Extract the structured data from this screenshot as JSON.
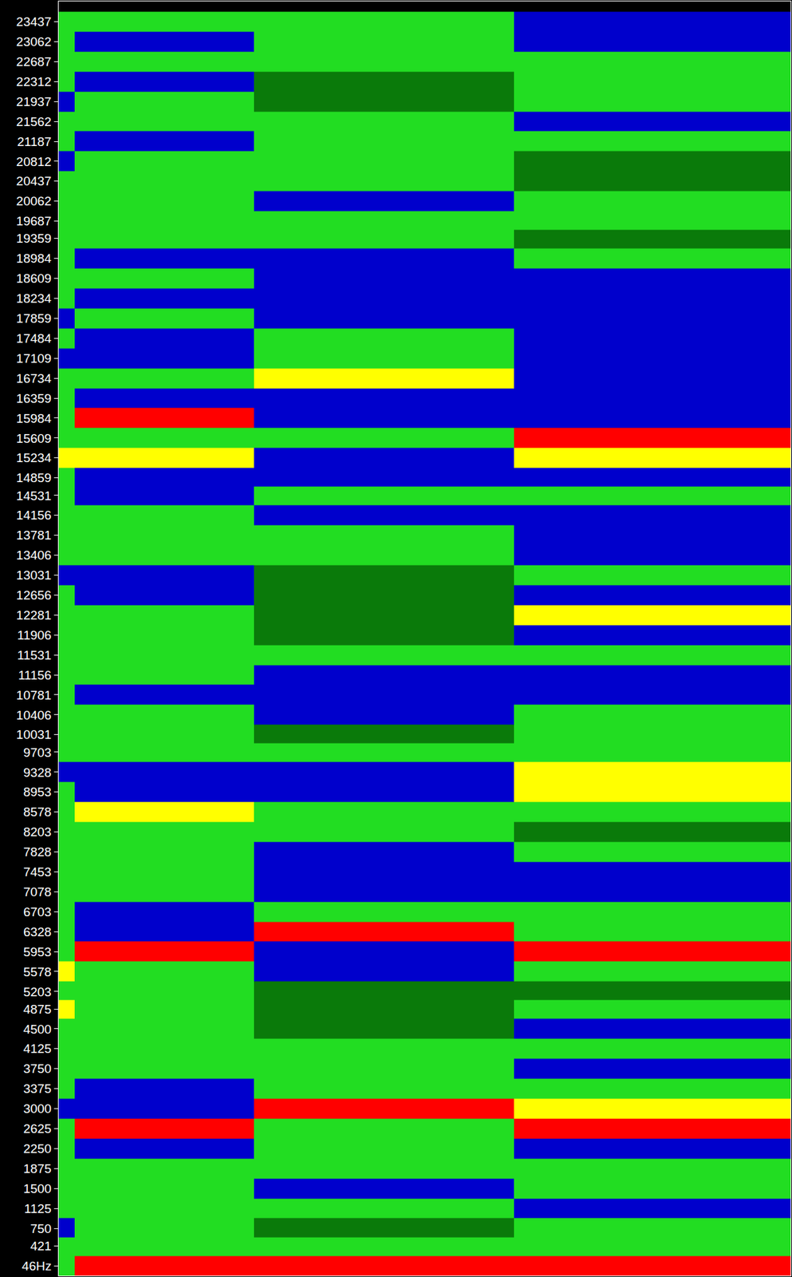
{
  "chart_data": {
    "type": "heatmap",
    "tick_labels": "y",
    "grid": false,
    "xlim": [
      0,
      45
    ],
    "ylim": [
      -140,
      23820
    ],
    "yticks": [
      {
        "value": 46,
        "label": "46Hz"
      },
      421,
      750,
      1125,
      1500,
      1875,
      2250,
      2625,
      3000,
      3375,
      3750,
      4125,
      4500,
      4875,
      5203,
      5578,
      5953,
      6328,
      6703,
      7078,
      7453,
      7828,
      8203,
      8578,
      8953,
      9328,
      9703,
      10031,
      10406,
      10781,
      11156,
      11531,
      11906,
      12281,
      12656,
      13031,
      13406,
      13781,
      14156,
      14531,
      14859,
      15234,
      15609,
      15984,
      16359,
      16734,
      17109,
      17484,
      17859,
      18234,
      18609,
      18984,
      19359,
      19687,
      20062,
      20437,
      20812,
      21187,
      21562,
      21937,
      22312,
      22687,
      23062,
      23437
    ],
    "x": [
      0,
      1,
      12,
      28,
      45
    ],
    "y": [
      46,
      421,
      750,
      1125,
      1500,
      1875,
      2250,
      2625,
      3000,
      3375,
      3750,
      4125,
      4500,
      4875,
      5203,
      5578,
      5953,
      6328,
      6703,
      7078,
      7453,
      7828,
      8203,
      8578,
      8953,
      9328,
      9703,
      10031,
      10406,
      10781,
      11156,
      11531,
      11906,
      12281,
      12656,
      13031,
      13406,
      13781,
      14156,
      14531,
      14859,
      15234,
      15609,
      15984,
      16359,
      16734,
      17109,
      17484,
      17859,
      18234,
      18609,
      18984,
      19359,
      19687,
      20062,
      20437,
      20812,
      21187,
      21562,
      21937,
      22312,
      22687,
      23062,
      23437
    ],
    "z": [
      [
        1,
        4,
        4,
        4
      ],
      [
        1,
        1,
        1,
        1
      ],
      [
        2,
        1,
        0,
        1
      ],
      [
        1,
        1,
        1,
        2
      ],
      [
        1,
        1,
        2,
        1
      ],
      [
        1,
        1,
        1,
        1
      ],
      [
        1,
        2,
        1,
        2
      ],
      [
        1,
        4,
        1,
        4
      ],
      [
        2,
        2,
        4,
        3
      ],
      [
        1,
        2,
        1,
        1
      ],
      [
        1,
        1,
        1,
        2
      ],
      [
        1,
        1,
        1,
        1
      ],
      [
        1,
        1,
        0,
        2
      ],
      [
        3,
        1,
        0,
        1
      ],
      [
        1,
        1,
        0,
        0
      ],
      [
        3,
        1,
        2,
        1
      ],
      [
        1,
        4,
        2,
        4
      ],
      [
        1,
        2,
        4,
        1
      ],
      [
        1,
        2,
        1,
        1
      ],
      [
        1,
        1,
        2,
        2
      ],
      [
        1,
        1,
        2,
        2
      ],
      [
        1,
        1,
        2,
        1
      ],
      [
        1,
        1,
        1,
        0
      ],
      [
        1,
        3,
        1,
        1
      ],
      [
        1,
        2,
        2,
        3
      ],
      [
        2,
        2,
        2,
        3
      ],
      [
        1,
        1,
        1,
        1
      ],
      [
        1,
        1,
        0,
        1
      ],
      [
        1,
        1,
        2,
        1
      ],
      [
        1,
        2,
        2,
        2
      ],
      [
        1,
        1,
        2,
        2
      ],
      [
        1,
        1,
        1,
        1
      ],
      [
        1,
        1,
        0,
        2
      ],
      [
        1,
        1,
        0,
        3
      ],
      [
        1,
        2,
        0,
        2
      ],
      [
        2,
        2,
        0,
        1
      ],
      [
        1,
        1,
        1,
        2
      ],
      [
        1,
        1,
        1,
        2
      ],
      [
        1,
        1,
        2,
        2
      ],
      [
        1,
        2,
        1,
        1
      ],
      [
        1,
        2,
        2,
        2
      ],
      [
        3,
        3,
        2,
        3
      ],
      [
        1,
        1,
        1,
        4
      ],
      [
        1,
        4,
        2,
        2
      ],
      [
        1,
        2,
        2,
        2
      ],
      [
        1,
        1,
        3,
        2
      ],
      [
        2,
        2,
        1,
        2
      ],
      [
        1,
        2,
        1,
        2
      ],
      [
        2,
        1,
        2,
        2
      ],
      [
        1,
        2,
        2,
        2
      ],
      [
        1,
        1,
        2,
        2
      ],
      [
        1,
        2,
        2,
        1
      ],
      [
        1,
        1,
        1,
        0
      ],
      [
        1,
        1,
        1,
        1
      ],
      [
        1,
        1,
        2,
        1
      ],
      [
        1,
        1,
        1,
        0
      ],
      [
        2,
        1,
        1,
        0
      ],
      [
        1,
        2,
        1,
        1
      ],
      [
        1,
        1,
        1,
        2
      ],
      [
        2,
        1,
        0,
        1
      ],
      [
        1,
        2,
        0,
        1
      ],
      [
        1,
        1,
        1,
        1
      ],
      [
        1,
        2,
        1,
        2
      ],
      [
        1,
        1,
        1,
        2
      ]
    ],
    "zlim": [
      0,
      4
    ],
    "colors": [
      "#0a7a0a",
      "#22dd22",
      "#0000cc",
      "#ffff00",
      "#ff0000"
    ]
  }
}
